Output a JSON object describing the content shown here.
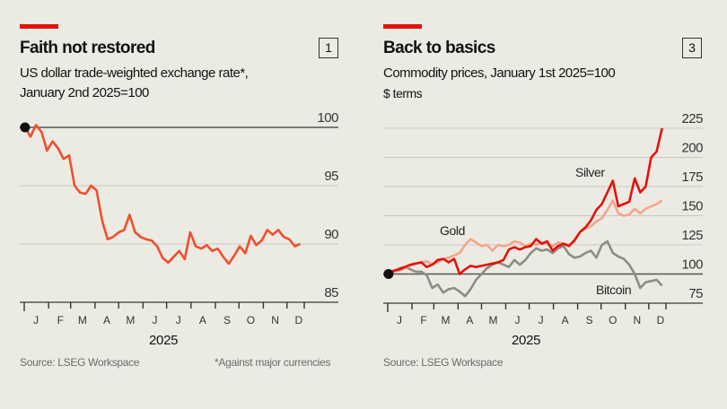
{
  "colors": {
    "background": "#ecebe3",
    "accent": "#e3120b",
    "usd": "#f04e2f",
    "silver": "#e3120b",
    "gold": "#f4a58a",
    "bitcoin": "#8c8c88",
    "baseline": "#555555",
    "grid": "#c9c8c0"
  },
  "left": {
    "title": "Faith not restored",
    "number": "1",
    "subtitle_line1": "US dollar trade-weighted exchange rate*,",
    "subtitle_line2": "January 2nd 2025=100",
    "year": "2025",
    "source": "Source: LSEG Workspace",
    "footnote": "*Against major currencies"
  },
  "right": {
    "title": "Back to basics",
    "number": "3",
    "subtitle_line1": "Commodity prices, January 1st 2025=100",
    "subtitle_line2": "$ terms",
    "year": "2025",
    "source": "Source: LSEG Workspace"
  },
  "chart_data": [
    {
      "type": "line",
      "title": "Faith not restored",
      "subtitle": "US dollar trade-weighted exchange rate*, January 2nd 2025=100",
      "xlabel": "2025",
      "x_tick_labels": [
        "J",
        "F",
        "M",
        "A",
        "M",
        "J",
        "J",
        "A",
        "S",
        "O",
        "N",
        "D"
      ],
      "ylim": [
        85,
        100
      ],
      "y_ticks": [
        85,
        90,
        95,
        100
      ],
      "baseline": 100,
      "grid": true,
      "x": [
        "2025-01-02",
        "2025-01-09",
        "2025-01-16",
        "2025-01-23",
        "2025-01-30",
        "2025-02-06",
        "2025-02-13",
        "2025-02-20",
        "2025-02-27",
        "2025-03-06",
        "2025-03-13",
        "2025-03-20",
        "2025-03-27",
        "2025-04-03",
        "2025-04-10",
        "2025-04-17",
        "2025-04-24",
        "2025-05-01",
        "2025-05-08",
        "2025-05-15",
        "2025-05-22",
        "2025-05-29",
        "2025-06-05",
        "2025-06-12",
        "2025-06-19",
        "2025-06-26",
        "2025-07-03",
        "2025-07-10",
        "2025-07-17",
        "2025-07-24",
        "2025-07-31",
        "2025-08-07",
        "2025-08-14",
        "2025-08-21",
        "2025-08-28",
        "2025-09-04",
        "2025-09-11",
        "2025-09-18",
        "2025-09-25",
        "2025-10-02",
        "2025-10-09",
        "2025-10-16",
        "2025-10-23",
        "2025-10-30",
        "2025-11-06",
        "2025-11-13",
        "2025-11-20",
        "2025-11-27",
        "2025-12-04",
        "2025-12-11",
        "2025-12-18"
      ],
      "series": [
        {
          "values": [
            100,
            99.2,
            100.2,
            99.6,
            98.0,
            98.8,
            98.2,
            97.3,
            97.6,
            95.0,
            94.4,
            94.3,
            95.0,
            94.6,
            92.0,
            90.4,
            90.6,
            91.0,
            91.2,
            92.5,
            91.0,
            90.6,
            90.4,
            90.3,
            89.8,
            88.8,
            88.4,
            88.9,
            89.4,
            88.7,
            91.0,
            89.8,
            89.6,
            89.9,
            89.4,
            89.6,
            88.9,
            88.3,
            89.0,
            89.8,
            89.2,
            90.7,
            89.9,
            90.3,
            91.2,
            90.8,
            91.2,
            90.6,
            90.4,
            89.8,
            90.0
          ]
        }
      ],
      "footnote": "*Against major currencies",
      "source": "Source: LSEG Workspace"
    },
    {
      "type": "line",
      "title": "Back to basics",
      "subtitle": "Commodity prices, January 1st 2025=100, $ terms",
      "xlabel": "2025",
      "x_tick_labels": [
        "J",
        "F",
        "M",
        "A",
        "M",
        "J",
        "J",
        "A",
        "S",
        "O",
        "N",
        "D"
      ],
      "ylim": [
        75,
        225
      ],
      "y_ticks": [
        75,
        100,
        125,
        150,
        175,
        200,
        225
      ],
      "baseline": 100,
      "grid": true,
      "x": [
        "2025-01-02",
        "2025-01-09",
        "2025-01-16",
        "2025-01-23",
        "2025-01-30",
        "2025-02-06",
        "2025-02-13",
        "2025-02-20",
        "2025-02-27",
        "2025-03-06",
        "2025-03-13",
        "2025-03-20",
        "2025-03-27",
        "2025-04-03",
        "2025-04-10",
        "2025-04-17",
        "2025-04-24",
        "2025-05-01",
        "2025-05-08",
        "2025-05-15",
        "2025-05-22",
        "2025-05-29",
        "2025-06-05",
        "2025-06-12",
        "2025-06-19",
        "2025-06-26",
        "2025-07-03",
        "2025-07-10",
        "2025-07-17",
        "2025-07-24",
        "2025-07-31",
        "2025-08-07",
        "2025-08-14",
        "2025-08-21",
        "2025-08-28",
        "2025-09-04",
        "2025-09-11",
        "2025-09-18",
        "2025-09-25",
        "2025-10-02",
        "2025-10-09",
        "2025-10-16",
        "2025-10-23",
        "2025-10-30",
        "2025-11-06",
        "2025-11-13",
        "2025-11-20",
        "2025-11-27",
        "2025-12-04",
        "2025-12-11",
        "2025-12-18"
      ],
      "series": [
        {
          "name": "Bitcoin",
          "color": "#8c8c88",
          "values": [
            100,
            102,
            105,
            106,
            104,
            102,
            102,
            99,
            88,
            91,
            84,
            87,
            88,
            85,
            81,
            87,
            95,
            100,
            105,
            108,
            110,
            108,
            106,
            112,
            108,
            112,
            118,
            122,
            120,
            121,
            118,
            122,
            124,
            117,
            114,
            115,
            118,
            120,
            114,
            125,
            128,
            118,
            115,
            113,
            108,
            100,
            88,
            93,
            94,
            95,
            90
          ]
        },
        {
          "name": "Gold",
          "color": "#f4a58a",
          "values": [
            100,
            102,
            103,
            105,
            107,
            109,
            110,
            111,
            108,
            110,
            113,
            114,
            116,
            118,
            125,
            130,
            127,
            124,
            125,
            120,
            125,
            124,
            125,
            128,
            127,
            124,
            126,
            125,
            127,
            126,
            124,
            127,
            126,
            125,
            128,
            136,
            139,
            141,
            145,
            148,
            155,
            163,
            152,
            150,
            151,
            156,
            152,
            156,
            158,
            160,
            163
          ]
        },
        {
          "name": "Silver",
          "color": "#e3120b",
          "values": [
            100,
            103,
            104,
            106,
            108,
            109,
            110,
            106,
            108,
            112,
            113,
            110,
            113,
            100,
            104,
            107,
            106,
            107,
            108,
            109,
            110,
            112,
            121,
            123,
            121,
            123,
            124,
            130,
            126,
            128,
            120,
            124,
            126,
            124,
            129,
            136,
            140,
            146,
            155,
            160,
            170,
            180,
            158,
            160,
            162,
            182,
            170,
            175,
            200,
            205,
            225
          ]
        }
      ],
      "source": "Source: LSEG Workspace"
    }
  ]
}
